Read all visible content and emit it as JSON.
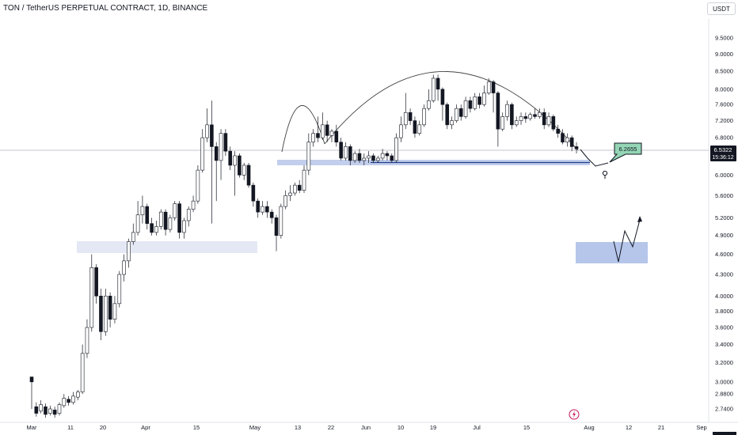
{
  "header": {
    "title": "TON / TetherUS PERPETUAL CONTRACT, 1D, BINANCE",
    "currency": "USDT"
  },
  "chart_data": {
    "type": "candlestick",
    "y_scale": "log",
    "y_ticks": [
      "9.5000",
      "9.0000",
      "8.5000",
      "8.0000",
      "7.6000",
      "7.2000",
      "6.8000",
      "6.0000",
      "5.6000",
      "5.2000",
      "4.9000",
      "4.6000",
      "4.3000",
      "4.0000",
      "3.8000",
      "3.6000",
      "3.4000",
      "3.2000",
      "3.0000",
      "2.8800",
      "2.7400"
    ],
    "x_ticks": [
      "Mar",
      "11",
      "20",
      "Apr",
      "15",
      "May",
      "13",
      "22",
      "Jun",
      "10",
      "19",
      "Jul",
      "15",
      "Aug",
      "12",
      "21",
      "Sep"
    ],
    "last_price": "6.5322",
    "countdown": "15:36:12",
    "annotation_price": "6.2655",
    "candles": [
      [
        3.05,
        3.0,
        3.05,
        2.74
      ],
      [
        2.76,
        2.7,
        2.8,
        2.67
      ],
      [
        2.72,
        2.78,
        2.82,
        2.7
      ],
      [
        2.76,
        2.69,
        2.79,
        2.66
      ],
      [
        2.7,
        2.74,
        2.77,
        2.68
      ],
      [
        2.73,
        2.69,
        2.76,
        2.66
      ],
      [
        2.7,
        2.78,
        2.8,
        2.68
      ],
      [
        2.77,
        2.84,
        2.88,
        2.75
      ],
      [
        2.83,
        2.8,
        2.86,
        2.77
      ],
      [
        2.8,
        2.86,
        2.9,
        2.78
      ],
      [
        2.85,
        2.9,
        2.92,
        2.82
      ],
      [
        2.9,
        3.3,
        3.4,
        2.88
      ],
      [
        3.3,
        3.6,
        3.7,
        3.25
      ],
      [
        3.6,
        4.4,
        4.6,
        3.55
      ],
      [
        4.4,
        4.0,
        4.45,
        3.9
      ],
      [
        4.0,
        3.55,
        4.1,
        3.45
      ],
      [
        3.55,
        4.0,
        4.1,
        3.5
      ],
      [
        4.0,
        3.7,
        4.05,
        3.6
      ],
      [
        3.7,
        3.9,
        4.0,
        3.65
      ],
      [
        3.9,
        4.3,
        4.35,
        3.85
      ],
      [
        4.3,
        4.5,
        4.6,
        4.2
      ],
      [
        4.5,
        4.8,
        4.85,
        4.4
      ],
      [
        4.8,
        4.95,
        5.1,
        4.75
      ],
      [
        4.95,
        5.25,
        5.5,
        4.9
      ],
      [
        5.25,
        5.4,
        5.6,
        5.1
      ],
      [
        5.4,
        5.1,
        5.45,
        5.0
      ],
      [
        5.1,
        4.95,
        5.2,
        4.9
      ],
      [
        4.95,
        5.05,
        5.15,
        4.9
      ],
      [
        5.05,
        5.3,
        5.35,
        5.0
      ],
      [
        5.3,
        5.0,
        5.35,
        4.9
      ],
      [
        5.0,
        5.2,
        5.25,
        4.95
      ],
      [
        5.2,
        5.45,
        5.5,
        5.15
      ],
      [
        5.45,
        4.95,
        5.5,
        4.85
      ],
      [
        4.95,
        5.15,
        5.2,
        4.85
      ],
      [
        5.15,
        5.35,
        5.4,
        5.05
      ],
      [
        5.35,
        5.5,
        5.6,
        5.3
      ],
      [
        5.5,
        6.1,
        6.2,
        5.45
      ],
      [
        6.1,
        6.8,
        7.0,
        6.05
      ],
      [
        6.8,
        7.1,
        7.5,
        6.7
      ],
      [
        7.1,
        6.6,
        7.7,
        5.1
      ],
      [
        6.6,
        6.3,
        6.7,
        5.5
      ],
      [
        6.3,
        6.9,
        7.0,
        5.9
      ],
      [
        6.9,
        6.5,
        7.0,
        6.4
      ],
      [
        6.5,
        6.2,
        6.6,
        6.1
      ],
      [
        6.2,
        6.4,
        6.5,
        5.6
      ],
      [
        6.4,
        6.0,
        6.45,
        5.95
      ],
      [
        6.0,
        6.2,
        6.25,
        5.9
      ],
      [
        6.2,
        5.8,
        6.25,
        5.75
      ],
      [
        5.8,
        5.5,
        5.85,
        5.4
      ],
      [
        5.5,
        5.3,
        5.55,
        5.2
      ],
      [
        5.3,
        5.4,
        5.5,
        5.25
      ],
      [
        5.4,
        5.3,
        5.5,
        5.2
      ],
      [
        5.3,
        5.2,
        5.35,
        5.1
      ],
      [
        5.2,
        4.9,
        5.25,
        4.65
      ],
      [
        4.9,
        5.4,
        5.45,
        4.85
      ],
      [
        5.4,
        5.6,
        5.7,
        5.35
      ],
      [
        5.6,
        5.65,
        5.8,
        5.5
      ],
      [
        5.65,
        5.8,
        5.85,
        5.6
      ],
      [
        5.8,
        5.7,
        5.9,
        5.65
      ],
      [
        5.7,
        6.1,
        6.2,
        5.65
      ],
      [
        6.1,
        6.7,
        6.9,
        6.0
      ],
      [
        6.7,
        6.9,
        7.0,
        6.6
      ],
      [
        6.9,
        6.8,
        7.3,
        6.7
      ],
      [
        6.8,
        7.1,
        7.4,
        6.75
      ],
      [
        7.1,
        6.85,
        7.2,
        6.7
      ],
      [
        6.85,
        6.95,
        7.0,
        6.7
      ],
      [
        6.95,
        6.7,
        7.1,
        6.6
      ],
      [
        6.7,
        6.35,
        6.8,
        6.3
      ],
      [
        6.35,
        6.6,
        6.7,
        6.3
      ],
      [
        6.6,
        6.3,
        6.65,
        6.2
      ],
      [
        6.3,
        6.45,
        6.5,
        6.25
      ],
      [
        6.45,
        6.3,
        6.55,
        6.25
      ],
      [
        6.3,
        6.35,
        6.45,
        6.2
      ],
      [
        6.35,
        6.4,
        6.5,
        6.25
      ],
      [
        6.4,
        6.3,
        6.45,
        6.25
      ],
      [
        6.3,
        6.35,
        6.4,
        6.25
      ],
      [
        6.35,
        6.45,
        6.55,
        6.3
      ],
      [
        6.45,
        6.4,
        6.5,
        6.3
      ],
      [
        6.4,
        6.3,
        6.45,
        6.25
      ],
      [
        6.3,
        6.8,
        6.9,
        6.25
      ],
      [
        6.8,
        7.1,
        7.3,
        6.7
      ],
      [
        7.1,
        7.4,
        7.9,
        7.0
      ],
      [
        7.4,
        7.2,
        7.5,
        7.1
      ],
      [
        7.2,
        6.9,
        7.3,
        6.8
      ],
      [
        6.9,
        7.1,
        7.2,
        6.85
      ],
      [
        7.1,
        7.5,
        7.6,
        7.05
      ],
      [
        7.5,
        7.7,
        8.0,
        7.45
      ],
      [
        7.7,
        8.3,
        8.4,
        7.65
      ],
      [
        8.3,
        8.0,
        8.4,
        7.7
      ],
      [
        8.0,
        7.6,
        8.05,
        7.2
      ],
      [
        7.6,
        7.1,
        7.65,
        7.0
      ],
      [
        7.1,
        7.2,
        7.3,
        7.0
      ],
      [
        7.2,
        7.5,
        7.6,
        7.15
      ],
      [
        7.5,
        7.3,
        7.6,
        7.2
      ],
      [
        7.3,
        7.7,
        7.8,
        7.25
      ],
      [
        7.7,
        7.5,
        7.8,
        7.4
      ],
      [
        7.5,
        7.8,
        7.9,
        7.45
      ],
      [
        7.8,
        7.6,
        7.9,
        7.5
      ],
      [
        7.6,
        7.9,
        8.1,
        7.55
      ],
      [
        7.9,
        8.2,
        8.3,
        7.85
      ],
      [
        8.2,
        7.9,
        8.25,
        7.4
      ],
      [
        7.9,
        7.0,
        7.95,
        6.6
      ],
      [
        7.0,
        7.3,
        7.4,
        6.95
      ],
      [
        7.3,
        7.6,
        7.7,
        7.2
      ],
      [
        7.6,
        7.1,
        7.65,
        7.0
      ],
      [
        7.1,
        7.2,
        7.3,
        7.05
      ],
      [
        7.2,
        7.3,
        7.4,
        7.1
      ],
      [
        7.3,
        7.25,
        7.4,
        7.15
      ],
      [
        7.25,
        7.35,
        7.4,
        7.2
      ],
      [
        7.35,
        7.3,
        7.5,
        7.25
      ],
      [
        7.3,
        7.4,
        7.5,
        7.25
      ],
      [
        7.4,
        7.1,
        7.5,
        7.0
      ],
      [
        7.1,
        7.3,
        7.4,
        7.05
      ],
      [
        7.3,
        7.0,
        7.35,
        6.95
      ],
      [
        7.0,
        6.9,
        7.1,
        6.8
      ],
      [
        6.9,
        6.7,
        7.0,
        6.65
      ],
      [
        6.7,
        6.8,
        6.9,
        6.6
      ],
      [
        6.8,
        6.6,
        6.85,
        6.5
      ],
      [
        6.6,
        6.55,
        6.7,
        6.45
      ]
    ]
  }
}
